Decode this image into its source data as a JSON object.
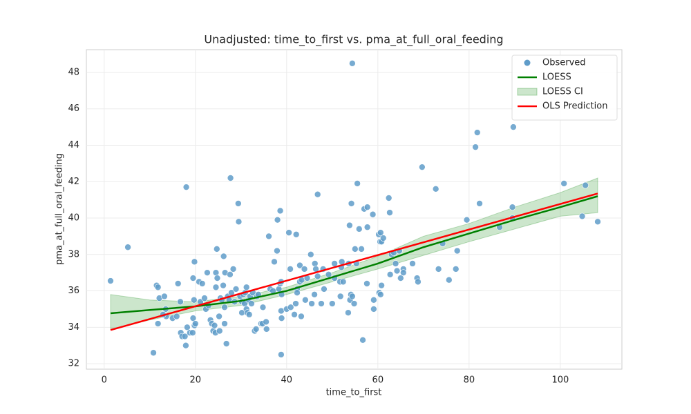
{
  "chart_data": {
    "type": "scatter",
    "title": "Unadjusted: time_to_first vs. pma_at_full_oral_feeding",
    "x_label": "time_to_first",
    "y_label": "pma_at_full_oral_feeding",
    "xlim": [
      -3.9,
      113.5
    ],
    "ylim": [
      31.7,
      49.25
    ],
    "xticks": [
      0,
      20,
      40,
      60,
      80,
      100
    ],
    "yticks": [
      32,
      34,
      36,
      38,
      40,
      42,
      44,
      46,
      48
    ],
    "grid": true,
    "legend": "upper right",
    "series": [
      {
        "name": "Observed",
        "type": "scatter",
        "color": "#5f9cc9",
        "x": [
          1.4,
          5.2,
          10.8,
          11.5,
          11.8,
          12.1,
          13.2,
          11.8,
          13.5,
          13.6,
          12.9,
          15,
          15.9,
          16.2,
          16.7,
          16.8,
          17.1,
          17.7,
          18,
          17.9,
          18.2,
          18.8,
          19.4,
          19.5,
          19.8,
          20,
          19.5,
          19.8,
          19.7,
          20.8,
          21.1,
          21.5,
          22,
          22.6,
          22.3,
          22.9,
          23.3,
          23.6,
          23.9,
          24.2,
          24.4,
          24.5,
          24.8,
          24.7,
          25.2,
          24.5,
          25.3,
          25.5,
          25.8,
          26.1,
          26.2,
          26.4,
          26.4,
          26.5,
          26.8,
          27.1,
          27.4,
          27.7,
          27.6,
          27.9,
          28.3,
          28.6,
          28.9,
          29.4,
          29.5,
          29.8,
          30.2,
          30.2,
          30.5,
          30.8,
          30.9,
          31.2,
          31.2,
          31.4,
          31.7,
          31.8,
          32,
          32.3,
          32.6,
          33,
          33.3,
          33.5,
          33.8,
          34.4,
          34.7,
          34.8,
          35.5,
          35.6,
          36.1,
          36.4,
          37,
          37.3,
          37.9,
          38,
          38.3,
          38.6,
          38.6,
          38.8,
          38.8,
          38.9,
          38.8,
          38.9,
          40,
          40.5,
          40.8,
          40.9,
          41.7,
          42,
          42.1,
          42.3,
          42.3,
          42.9,
          42.9,
          43.2,
          43.3,
          43.9,
          44.1,
          44.5,
          45.3,
          45.5,
          46.1,
          46.2,
          46.4,
          46.8,
          46.8,
          47.6,
          48,
          48.2,
          49.2,
          50,
          50.5,
          50.5,
          51.7,
          52,
          51.8,
          52.1,
          52.4,
          53.5,
          53.8,
          53.6,
          53.9,
          54.1,
          54.2,
          54.4,
          54.4,
          54.8,
          55,
          55.3,
          55.5,
          55.9,
          56.4,
          56.7,
          57,
          57.6,
          57.7,
          57.7,
          58.9,
          59.1,
          59.1,
          60.2,
          60.3,
          60.5,
          60.6,
          60.8,
          60.6,
          60.8,
          61.2,
          62.4,
          62.7,
          62.6,
          63,
          63.5,
          63.9,
          64.2,
          64.7,
          65,
          65.6,
          65.6,
          67.6,
          68.6,
          68.8,
          69.7,
          72.7,
          73.3,
          74.2,
          75.6,
          77.1,
          77.4,
          79.5,
          81.4,
          81.8,
          82.3,
          86.7,
          89.5,
          89.5,
          89.7,
          100.8,
          104.8,
          105.5,
          108.2
        ],
        "values": [
          36.55,
          38.4,
          32.6,
          36.3,
          36.2,
          35.6,
          35.7,
          34.2,
          35,
          34.6,
          34.7,
          34.5,
          34.6,
          36.4,
          35.4,
          33.7,
          33.5,
          33.5,
          41.7,
          33,
          34,
          33.7,
          33.7,
          34.5,
          34.1,
          34.2,
          36.7,
          37.6,
          35.5,
          36.5,
          35.4,
          36.4,
          35.6,
          37,
          35,
          35.2,
          34.4,
          34.2,
          33.8,
          34.1,
          33.7,
          37,
          36.7,
          38.3,
          34.6,
          36.2,
          33.8,
          35.6,
          35.5,
          36.3,
          37.9,
          35.1,
          34.2,
          37,
          33.1,
          35.7,
          35.5,
          42.2,
          36.9,
          35.9,
          37.2,
          35.4,
          36.1,
          40.8,
          39.8,
          35.7,
          34.8,
          35.4,
          35.8,
          35.3,
          35.9,
          36.2,
          35,
          34.8,
          35.5,
          34.7,
          35.7,
          35.3,
          35.9,
          33.8,
          33.9,
          35.7,
          35.8,
          34.2,
          34.2,
          35.1,
          34.3,
          33.9,
          39,
          36.1,
          36,
          37.6,
          38.2,
          39.9,
          36.1,
          40.4,
          36.4,
          36.5,
          34.9,
          35.8,
          32.5,
          34.5,
          35,
          39.2,
          37.2,
          35.1,
          34.7,
          35.3,
          39.1,
          36.1,
          35.9,
          36.5,
          37.4,
          34.6,
          36.6,
          37.2,
          35.5,
          36.7,
          38,
          35.3,
          35.8,
          37.5,
          37.2,
          41.3,
          36.8,
          35.3,
          37.2,
          36.1,
          36.9,
          35.3,
          37.5,
          36.7,
          36.5,
          37.3,
          35.7,
          37.6,
          36.5,
          34.8,
          39.6,
          37.5,
          35.5,
          35.8,
          40.8,
          48.5,
          35.7,
          35.3,
          38.3,
          37.5,
          41.9,
          39.4,
          38.3,
          33.3,
          40.5,
          36.4,
          40.6,
          39.5,
          40.2,
          35,
          35.5,
          39.1,
          35.9,
          38.7,
          39.2,
          36.3,
          35.8,
          38.7,
          38.9,
          41.1,
          36.9,
          40.3,
          38,
          38.1,
          37.5,
          37.1,
          38.2,
          36.7,
          37.2,
          37,
          37.5,
          36.7,
          36.5,
          42.8,
          41.6,
          37.2,
          38.6,
          36.6,
          37.2,
          38.2,
          39.9,
          43.9,
          44.7,
          40.8,
          39.5,
          40.6,
          40,
          45,
          41.9,
          40.1,
          41.8,
          39.8
        ]
      },
      {
        "name": "LOESS",
        "type": "line",
        "color": "#008000",
        "x": [
          1.4,
          10,
          20,
          30,
          40,
          50,
          60,
          70,
          80,
          90,
          100,
          108.2
        ],
        "values": [
          34.77,
          34.95,
          35.15,
          35.45,
          36,
          36.75,
          37.5,
          38.4,
          39.15,
          39.9,
          40.6,
          41.2
        ]
      },
      {
        "name": "LOESS CI",
        "type": "band",
        "color": "#008000",
        "x": [
          1.4,
          10,
          20,
          30,
          40,
          50,
          60,
          70,
          80,
          90,
          100,
          108.2
        ],
        "lower": [
          33.9,
          34.4,
          34.9,
          35.2,
          35.8,
          36.5,
          37.2,
          37.95,
          38.7,
          39.4,
          40.1,
          40.3
        ],
        "upper": [
          35.8,
          35.5,
          35.4,
          35.7,
          36.2,
          37,
          37.9,
          39,
          39.7,
          40.6,
          41.4,
          42.2
        ]
      },
      {
        "name": "OLS Prediction",
        "type": "line",
        "color": "#ff0000",
        "x": [
          1.4,
          108.2
        ],
        "values": [
          33.85,
          41.35
        ]
      }
    ]
  }
}
